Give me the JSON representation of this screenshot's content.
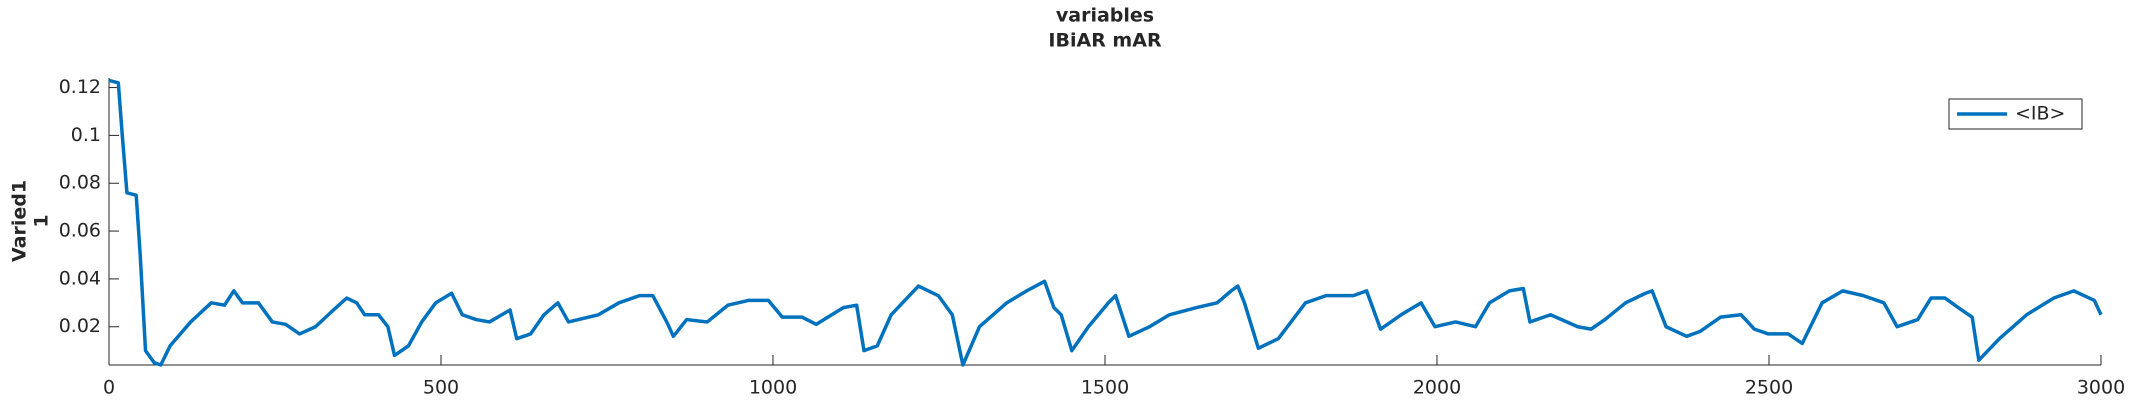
{
  "chart_data": {
    "type": "line",
    "title": [
      "variables",
      "IBiAR mAR"
    ],
    "ylabel": [
      "Varied1",
      "1"
    ],
    "x": [
      0,
      14,
      20,
      27,
      41,
      47,
      55,
      68,
      78,
      92,
      123,
      154,
      174,
      188,
      201,
      225,
      246,
      266,
      287,
      311,
      338,
      358,
      373,
      385,
      406,
      420,
      430,
      451,
      471,
      492,
      516,
      532,
      553,
      573,
      604,
      614,
      635,
      655,
      676,
      692,
      707,
      737,
      768,
      799,
      819,
      840,
      850,
      870,
      901,
      932,
      963,
      993,
      1014,
      1044,
      1065,
      1106,
      1126,
      1137,
      1157,
      1178,
      1219,
      1249,
      1270,
      1286,
      1311,
      1352,
      1382,
      1409,
      1423,
      1434,
      1450,
      1475,
      1505,
      1516,
      1536,
      1567,
      1597,
      1638,
      1669,
      1690,
      1700,
      1710,
      1731,
      1761,
      1802,
      1833,
      1874,
      1894,
      1915,
      1946,
      1976,
      1997,
      2028,
      2058,
      2079,
      2109,
      2130,
      2140,
      2171,
      2212,
      2232,
      2253,
      2284,
      2314,
      2324,
      2345,
      2376,
      2396,
      2427,
      2458,
      2478,
      2499,
      2529,
      2550,
      2580,
      2611,
      2642,
      2673,
      2693,
      2724,
      2744,
      2765,
      2785,
      2806,
      2816,
      2847,
      2888,
      2929,
      2959,
      2990,
      3000
    ],
    "series": [
      {
        "name": "<IB>",
        "color": "#0072bd",
        "values": [
          0.123,
          0.122,
          0.1,
          0.076,
          0.075,
          0.05,
          0.01,
          0.005,
          0.004,
          0.012,
          0.022,
          0.03,
          0.029,
          0.035,
          0.03,
          0.03,
          0.022,
          0.021,
          0.017,
          0.02,
          0.027,
          0.032,
          0.03,
          0.025,
          0.025,
          0.02,
          0.008,
          0.012,
          0.022,
          0.03,
          0.034,
          0.025,
          0.023,
          0.022,
          0.027,
          0.015,
          0.017,
          0.025,
          0.03,
          0.022,
          0.023,
          0.025,
          0.03,
          0.033,
          0.033,
          0.022,
          0.016,
          0.023,
          0.022,
          0.029,
          0.031,
          0.031,
          0.024,
          0.024,
          0.021,
          0.028,
          0.029,
          0.01,
          0.012,
          0.025,
          0.037,
          0.033,
          0.025,
          0.004,
          0.02,
          0.03,
          0.035,
          0.039,
          0.028,
          0.025,
          0.01,
          0.02,
          0.03,
          0.033,
          0.016,
          0.02,
          0.025,
          0.028,
          0.03,
          0.035,
          0.037,
          0.03,
          0.011,
          0.015,
          0.03,
          0.033,
          0.033,
          0.035,
          0.019,
          0.025,
          0.03,
          0.02,
          0.022,
          0.02,
          0.03,
          0.035,
          0.036,
          0.022,
          0.025,
          0.02,
          0.019,
          0.023,
          0.03,
          0.034,
          0.035,
          0.02,
          0.016,
          0.018,
          0.024,
          0.025,
          0.019,
          0.017,
          0.017,
          0.013,
          0.03,
          0.035,
          0.033,
          0.03,
          0.02,
          0.023,
          0.032,
          0.032,
          0.028,
          0.024,
          0.006,
          0.015,
          0.025,
          0.032,
          0.035,
          0.031,
          0.025
        ]
      }
    ],
    "xlim": [
      0,
      3000
    ],
    "xticks": [
      0,
      500,
      1000,
      1500,
      2000,
      2500,
      3000
    ],
    "ylim": [
      0.004,
      0.124
    ],
    "yticks": [
      0.02,
      0.04,
      0.06,
      0.08,
      0.1,
      0.12
    ],
    "legend": "upper right"
  }
}
